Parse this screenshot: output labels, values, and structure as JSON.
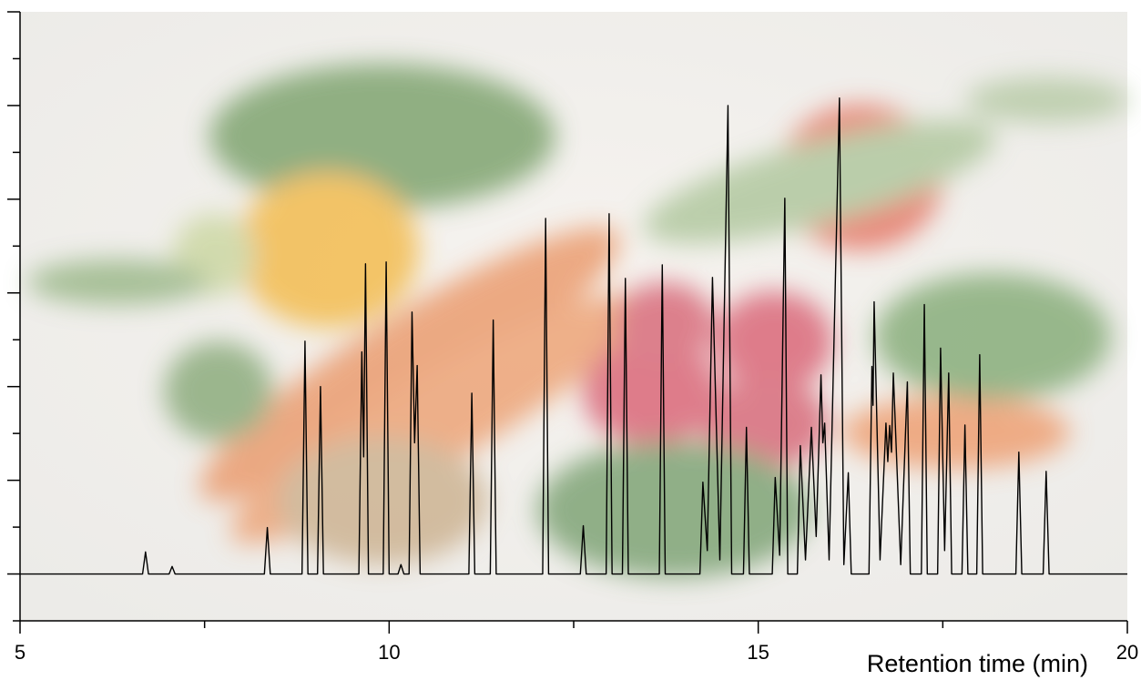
{
  "chart_data": {
    "type": "line",
    "xlabel": "Retention time (min)",
    "xlim": [
      5,
      20
    ],
    "xticks": [
      5,
      10,
      15,
      20
    ],
    "x_minor_ticks": [
      7.5,
      12.5,
      17.5
    ],
    "ylim": [
      -1,
      12
    ],
    "yticks": [
      0,
      2,
      4,
      6,
      8,
      10,
      12
    ],
    "y_minor_ticks": [
      -1,
      1,
      3,
      5,
      7,
      9,
      11
    ],
    "ytick_labels": false,
    "color": "#000000",
    "x": [
      5,
      6.66,
      6.7,
      6.74,
      7.02,
      7.06,
      7.1,
      8.31,
      8.35,
      8.39,
      8.82,
      8.86,
      8.9,
      9.03,
      9.07,
      9.11,
      9.59,
      9.63,
      9.655,
      9.68,
      9.72,
      9.92,
      9.96,
      10.0,
      10.12,
      10.16,
      10.2,
      10.27,
      10.31,
      10.345,
      10.38,
      10.42,
      11.08,
      11.12,
      11.16,
      11.37,
      11.41,
      11.45,
      12.08,
      12.12,
      12.16,
      12.59,
      12.63,
      12.67,
      12.94,
      12.98,
      13.02,
      13.16,
      13.2,
      13.24,
      13.66,
      13.7,
      13.74,
      14.21,
      14.25,
      14.31,
      14.38,
      14.48,
      14.59,
      14.64,
      14.8,
      14.84,
      14.88,
      15.19,
      15.23,
      15.29,
      15.36,
      15.4,
      15.53,
      15.57,
      15.64,
      15.72,
      15.785,
      15.85,
      15.875,
      15.9,
      15.96,
      16.1,
      16.16,
      16.22,
      16.26,
      16.5,
      16.54,
      16.555,
      16.57,
      16.65,
      16.73,
      16.755,
      16.78,
      16.805,
      16.83,
      16.93,
      17.02,
      17.06,
      17.21,
      17.25,
      17.29,
      17.43,
      17.47,
      17.525,
      17.58,
      17.62,
      17.76,
      17.8,
      17.84,
      17.96,
      18,
      18.04,
      18.49,
      18.53,
      18.57,
      18.86,
      18.9,
      18.94,
      20
    ],
    "y": [
      0,
      0,
      0.47,
      0,
      0,
      0.16,
      0,
      0,
      0.99,
      0,
      0,
      4.97,
      0,
      0,
      4.0,
      0,
      0,
      4.74,
      2.5,
      6.62,
      0,
      0,
      6.66,
      0,
      0,
      0.2,
      0,
      0,
      5.59,
      2.8,
      4.45,
      0,
      0,
      3.86,
      0,
      0,
      5.42,
      0,
      0,
      7.59,
      0,
      0,
      1.03,
      0,
      0,
      7.69,
      0,
      0,
      6.31,
      0,
      0,
      6.6,
      0,
      0,
      1.96,
      0.5,
      6.33,
      0.3,
      10.0,
      0,
      0,
      3.13,
      0,
      0,
      2.06,
      0.4,
      8.02,
      0,
      0,
      2.74,
      0.3,
      3.13,
      0.8,
      4.25,
      2.8,
      3.22,
      0.3,
      10.16,
      0.2,
      2.16,
      0,
      0,
      4.43,
      3.6,
      5.81,
      0.3,
      3.22,
      2.4,
      3.17,
      2.6,
      4.29,
      0.2,
      4.1,
      0,
      0,
      5.75,
      0,
      0,
      4.82,
      0.5,
      4.29,
      0,
      0,
      3.18,
      0,
      0,
      4.68,
      0,
      0,
      2.6,
      0,
      0,
      2.19,
      0,
      0
    ]
  }
}
